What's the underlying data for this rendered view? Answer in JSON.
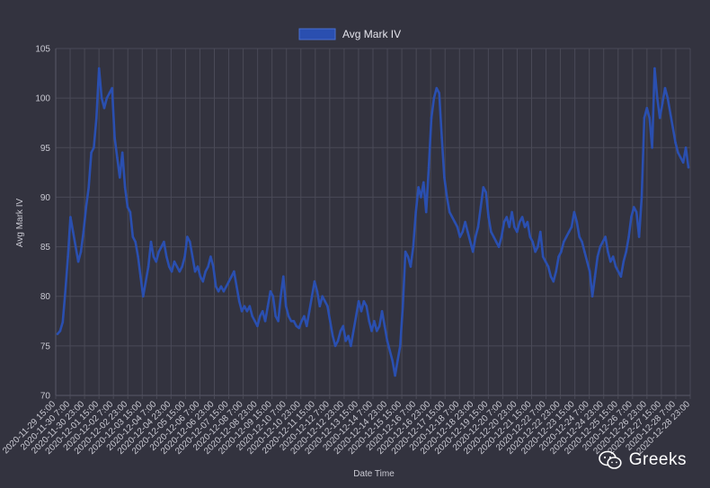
{
  "watermark": {
    "text": "Greeks",
    "icon": "wechat-icon"
  },
  "colors": {
    "background": "#33333f",
    "grid": "#4a4a57",
    "series": "#2a4fb0",
    "text": "#c9c9d2"
  },
  "chart_data": {
    "type": "line",
    "title": "",
    "xlabel": "Date Time",
    "ylabel": "Avg Mark IV",
    "ylim": [
      70,
      105
    ],
    "yticks": [
      70,
      75,
      80,
      85,
      90,
      95,
      100,
      105
    ],
    "grid": true,
    "legend_position": "top-center",
    "x_tick_labels": [
      "2020-11-29 15:00",
      "2020-11-30 7:00",
      "2020-11-30 23:00",
      "2020-12-01 15:00",
      "2020-12-02 7:00",
      "2020-12-02 23:00",
      "2020-12-03 15:00",
      "2020-12-04 7:00",
      "2020-12-04 23:00",
      "2020-12-05 15:00",
      "2020-12-06 7:00",
      "2020-12-06 23:00",
      "2020-12-07 15:00",
      "2020-12-08 7:00",
      "2020-12-08 23:00",
      "2020-12-09 15:00",
      "2020-12-10 7:00",
      "2020-12-10 23:00",
      "2020-12-11 15:00",
      "2020-12-12 7:00",
      "2020-12-12 23:00",
      "2020-12-13 15:00",
      "2020-12-14 7:00",
      "2020-12-14 23:00",
      "2020-12-15 15:00",
      "2020-12-16 7:00",
      "2020-12-16 23:00",
      "2020-12-17 15:00",
      "2020-12-18 7:00",
      "2020-12-18 23:00",
      "2020-12-19 15:00",
      "2020-12-20 7:00",
      "2020-12-20 23:00",
      "2020-12-21 15:00",
      "2020-12-22 7:00",
      "2020-12-22 23:00",
      "2020-12-23 15:00",
      "2020-12-24 7:00",
      "2020-12-24 23:00",
      "2020-12-25 15:00",
      "2020-12-26 7:00",
      "2020-12-26 23:00",
      "2020-12-27 15:00",
      "2020-12-28 7:00",
      "2020-12-28 23:00"
    ],
    "series": [
      {
        "name": "Avg Mark IV",
        "color": "#2a4fb0",
        "values": [
          76.2,
          76.5,
          77.4,
          80.5,
          84.0,
          88.0,
          86.5,
          85.0,
          83.5,
          84.5,
          86.5,
          89.0,
          91.0,
          94.5,
          95.0,
          98.0,
          103.0,
          100.0,
          99.0,
          100.0,
          100.5,
          101.0,
          96.0,
          94.0,
          92.0,
          94.5,
          91.0,
          89.0,
          88.5,
          86.0,
          85.5,
          84.0,
          82.0,
          80.0,
          81.5,
          83.0,
          85.5,
          84.0,
          83.5,
          84.5,
          85.0,
          85.5,
          84.0,
          83.0,
          82.5,
          83.5,
          83.0,
          82.5,
          83.0,
          84.0,
          86.0,
          85.5,
          84.0,
          82.5,
          83.0,
          82.0,
          81.5,
          82.5,
          83.0,
          84.0,
          83.0,
          81.0,
          80.5,
          81.0,
          80.5,
          81.0,
          81.5,
          82.0,
          82.5,
          81.0,
          79.5,
          78.5,
          79.0,
          78.5,
          79.0,
          78.0,
          77.5,
          77.0,
          78.0,
          78.5,
          77.5,
          79.0,
          80.5,
          80.0,
          78.0,
          77.5,
          80.0,
          82.0,
          79.0,
          78.0,
          77.5,
          77.5,
          77.0,
          76.8,
          77.5,
          78.0,
          77.0,
          78.5,
          80.0,
          81.5,
          80.5,
          79.0,
          80.0,
          79.5,
          79.0,
          77.5,
          76.0,
          75.0,
          75.5,
          76.5,
          77.0,
          75.5,
          76.0,
          75.0,
          76.5,
          78.0,
          79.5,
          78.5,
          79.5,
          79.0,
          77.5,
          76.5,
          77.5,
          76.5,
          77.0,
          78.5,
          77.0,
          75.5,
          74.5,
          73.5,
          72.0,
          73.5,
          75.0,
          79.0,
          84.5,
          84.0,
          83.0,
          85.0,
          88.5,
          91.0,
          90.0,
          91.5,
          88.5,
          93.0,
          98.0,
          100.0,
          101.0,
          100.5,
          96.0,
          92.0,
          90.0,
          88.5,
          88.0,
          87.5,
          87.0,
          86.0,
          86.5,
          87.5,
          86.5,
          85.5,
          84.5,
          86.0,
          87.0,
          89.0,
          91.0,
          90.5,
          88.0,
          86.5,
          86.0,
          85.5,
          85.0,
          86.0,
          87.5,
          88.0,
          87.0,
          88.5,
          87.0,
          86.5,
          87.5,
          88.0,
          87.0,
          87.5,
          86.0,
          85.5,
          84.5,
          85.0,
          86.5,
          84.0,
          83.5,
          83.0,
          82.0,
          81.5,
          82.5,
          84.0,
          84.5,
          85.5,
          86.0,
          86.5,
          87.0,
          88.5,
          87.5,
          86.0,
          85.5,
          84.5,
          83.5,
          82.5,
          80.0,
          82.0,
          84.0,
          85.0,
          85.5,
          86.0,
          84.5,
          83.5,
          84.0,
          83.0,
          82.5,
          82.0,
          83.5,
          84.5,
          86.0,
          88.0,
          89.0,
          88.5,
          86.0,
          90.0,
          98.0,
          99.0,
          98.0,
          95.0,
          103.0,
          100.0,
          98.0,
          99.5,
          101.0,
          100.0,
          98.5,
          97.0,
          95.5,
          94.5,
          94.0,
          93.5,
          95.0,
          93.0
        ]
      }
    ]
  }
}
